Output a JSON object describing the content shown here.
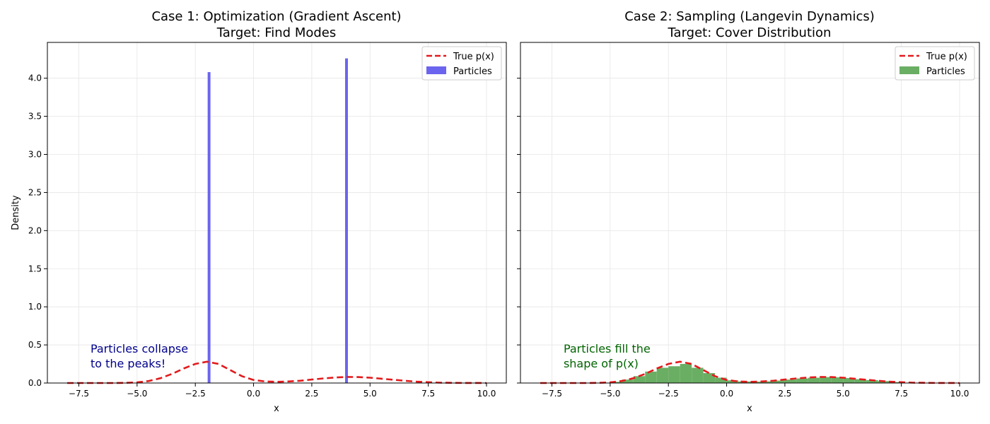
{
  "chart_data": [
    {
      "type": "line+histogram",
      "title": "Case 1: Optimization (Gradient Ascent)",
      "subtitle": "Target: Find Modes",
      "xlabel": "x",
      "ylabel": "Density",
      "xlim": [
        -8.85,
        10.85
      ],
      "ylim": [
        0,
        4.47
      ],
      "xticks": [
        -7.5,
        -5.0,
        -2.5,
        0.0,
        2.5,
        5.0,
        7.5,
        10.0
      ],
      "xtick_labels": [
        "−7.5",
        "−5.0",
        "−2.5",
        "0.0",
        "2.5",
        "5.0",
        "7.5",
        "10.0"
      ],
      "yticks": [
        0.0,
        0.5,
        1.0,
        1.5,
        2.0,
        2.5,
        3.0,
        3.5,
        4.0
      ],
      "ytick_labels": [
        "0.0",
        "0.5",
        "1.0",
        "1.5",
        "2.0",
        "2.5",
        "3.0",
        "3.5",
        "4.0"
      ],
      "grid": true,
      "legend_position": "top-right",
      "legend": [
        {
          "label": "True p(x)",
          "kind": "line",
          "color": "#e31a1c"
        },
        {
          "label": "Particles",
          "kind": "bar",
          "color": "#6b64ee"
        }
      ],
      "annotation": {
        "lines": [
          "Particles collapse",
          "to the peaks!"
        ],
        "x": -7.0,
        "y": 0.25,
        "color": "#00008b"
      },
      "curve": {
        "name": "True p(x)",
        "color": "#e31a1c",
        "x": [
          -8.0,
          -7.0,
          -6.0,
          -5.5,
          -5.0,
          -4.5,
          -4.0,
          -3.5,
          -3.0,
          -2.5,
          -2.0,
          -1.5,
          -1.0,
          -0.5,
          0.0,
          0.5,
          1.0,
          1.5,
          2.0,
          2.5,
          3.0,
          3.5,
          4.0,
          4.5,
          5.0,
          5.5,
          6.0,
          6.5,
          7.0,
          8.0,
          9.0,
          10.0
        ],
        "y": [
          0.0,
          0.0,
          0.0,
          0.002,
          0.008,
          0.026,
          0.063,
          0.12,
          0.19,
          0.25,
          0.28,
          0.25,
          0.17,
          0.09,
          0.04,
          0.02,
          0.016,
          0.02,
          0.03,
          0.045,
          0.06,
          0.072,
          0.08,
          0.078,
          0.07,
          0.057,
          0.043,
          0.03,
          0.018,
          0.005,
          0.001,
          0.0
        ]
      },
      "histogram": {
        "name": "Particles",
        "color": "#6b64ee",
        "bin_edges": [
          -1.97,
          -1.85,
          3.93,
          4.05
        ],
        "bars": [
          {
            "x0": -1.97,
            "x1": -1.85,
            "height": 4.08
          },
          {
            "x0": 3.93,
            "x1": 4.05,
            "height": 4.26
          }
        ]
      }
    },
    {
      "type": "line+histogram",
      "title": "Case 2: Sampling (Langevin Dynamics)",
      "subtitle": "Target: Cover Distribution",
      "xlabel": "x",
      "ylabel": "",
      "xlim": [
        -8.85,
        10.85
      ],
      "ylim": [
        0,
        4.47
      ],
      "xticks": [
        -7.5,
        -5.0,
        -2.5,
        0.0,
        2.5,
        5.0,
        7.5,
        10.0
      ],
      "xtick_labels": [
        "−7.5",
        "−5.0",
        "−2.5",
        "0.0",
        "2.5",
        "5.0",
        "7.5",
        "10.0"
      ],
      "yticks": [
        0.0,
        0.5,
        1.0,
        1.5,
        2.0,
        2.5,
        3.0,
        3.5,
        4.0
      ],
      "ytick_labels": [],
      "grid": true,
      "legend_position": "top-right",
      "legend": [
        {
          "label": "True p(x)",
          "kind": "line",
          "color": "#e31a1c"
        },
        {
          "label": "Particles",
          "kind": "bar",
          "color": "#6aae64"
        }
      ],
      "annotation": {
        "lines": [
          "Particles fill the",
          "shape of p(x)"
        ],
        "x": -7.0,
        "y": 0.25,
        "color": "#006400"
      },
      "curve": {
        "name": "True p(x)",
        "color": "#e31a1c",
        "x": [
          -8.0,
          -7.0,
          -6.0,
          -5.5,
          -5.0,
          -4.5,
          -4.0,
          -3.5,
          -3.0,
          -2.5,
          -2.0,
          -1.5,
          -1.0,
          -0.5,
          0.0,
          0.5,
          1.0,
          1.5,
          2.0,
          2.5,
          3.0,
          3.5,
          4.0,
          4.5,
          5.0,
          5.5,
          6.0,
          6.5,
          7.0,
          8.0,
          9.0,
          10.0
        ],
        "y": [
          0.0,
          0.0,
          0.0,
          0.002,
          0.008,
          0.026,
          0.063,
          0.12,
          0.19,
          0.25,
          0.28,
          0.25,
          0.17,
          0.09,
          0.04,
          0.02,
          0.016,
          0.02,
          0.03,
          0.045,
          0.06,
          0.072,
          0.08,
          0.078,
          0.07,
          0.057,
          0.043,
          0.03,
          0.018,
          0.005,
          0.001,
          0.0
        ]
      },
      "histogram": {
        "name": "Particles",
        "color": "#6aae64",
        "bin_edges": [
          -5.5,
          -5.0,
          -4.5,
          -4.0,
          -3.5,
          -3.0,
          -2.5,
          -2.0,
          -1.5,
          -1.0,
          -0.5,
          0.0,
          0.5,
          1.0,
          1.5,
          2.0,
          2.5,
          3.0,
          3.5,
          4.0,
          4.5,
          5.0,
          5.5,
          6.0,
          6.5,
          7.0,
          7.5
        ],
        "heights": [
          0.005,
          0.015,
          0.045,
          0.09,
          0.15,
          0.2,
          0.22,
          0.25,
          0.2,
          0.13,
          0.07,
          0.035,
          0.02,
          0.018,
          0.022,
          0.032,
          0.045,
          0.06,
          0.07,
          0.078,
          0.075,
          0.065,
          0.05,
          0.038,
          0.025,
          0.012
        ]
      }
    }
  ]
}
